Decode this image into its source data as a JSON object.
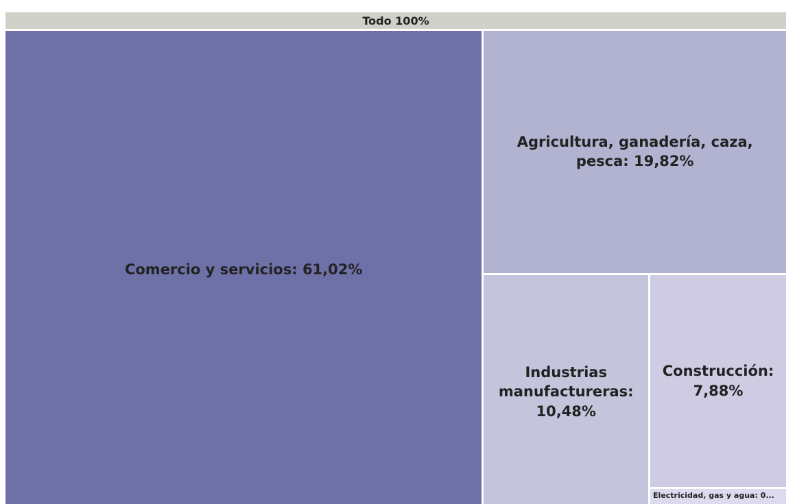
{
  "chart_data": {
    "type": "treemap",
    "root_label": "Todo 100%",
    "root_color": "#cfd0c8",
    "labels": [
      "Comercio y servicios: 61,02%",
      "Agricultura, ganadería, caza, pesca: 19,82%",
      "Industrias manufactureras: 10,48%",
      "Construcción: 7,88%",
      "Electricidad, gas y agua: 0..."
    ],
    "values": [
      61.02,
      19.82,
      10.48,
      7.88,
      0.8
    ],
    "colors": [
      "#6e71a8",
      "#b2b3d0",
      "#c4c5dc",
      "#cfcbe3",
      "#dcdaee"
    ]
  }
}
